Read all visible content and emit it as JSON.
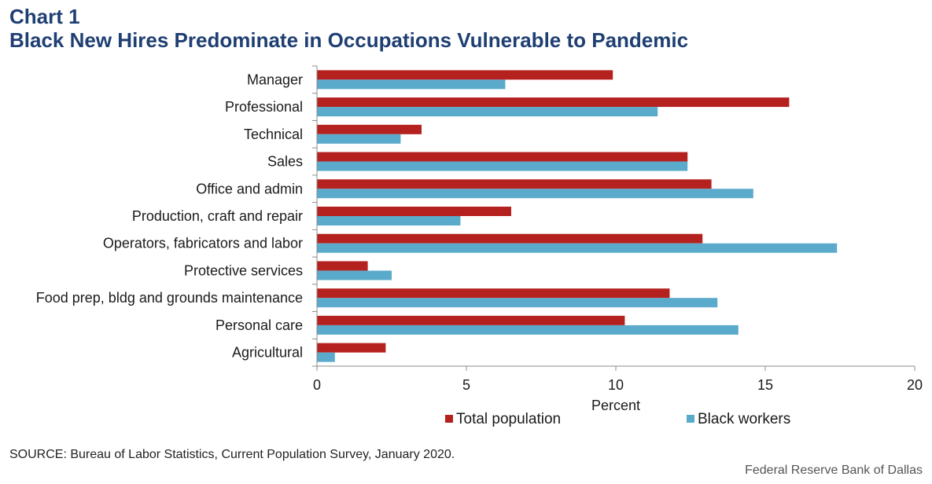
{
  "title": {
    "label": "Chart 1",
    "main": "Black New Hires Predominate in Occupations Vulnerable to Pandemic"
  },
  "chart_data": {
    "type": "bar",
    "orientation": "horizontal",
    "categories": [
      "Manager",
      "Professional",
      "Technical",
      "Sales",
      "Office and admin",
      "Production, craft and repair",
      "Operators, fabricators and labor",
      "Protective services",
      "Food prep, bldg and grounds maintenance",
      "Personal care",
      "Agricultural"
    ],
    "series": [
      {
        "name": "Total population",
        "color": "#b5211f",
        "values": [
          9.9,
          15.8,
          3.5,
          12.4,
          13.2,
          6.5,
          12.9,
          1.7,
          11.8,
          10.3,
          2.3
        ]
      },
      {
        "name": "Black workers",
        "color": "#5aaacb",
        "values": [
          6.3,
          11.4,
          2.8,
          12.4,
          14.6,
          4.8,
          17.4,
          2.5,
          13.4,
          14.1,
          0.6
        ]
      }
    ],
    "xlabel": "Percent",
    "xlim": [
      0,
      20
    ],
    "xticks": [
      0,
      5,
      10,
      15,
      20
    ],
    "grid": false,
    "legend_position": "bottom"
  },
  "footer": {
    "source": "SOURCE: Bureau of Labor Statistics, Current Population Survey, January 2020.",
    "credit": "Federal Reserve Bank of Dallas"
  }
}
